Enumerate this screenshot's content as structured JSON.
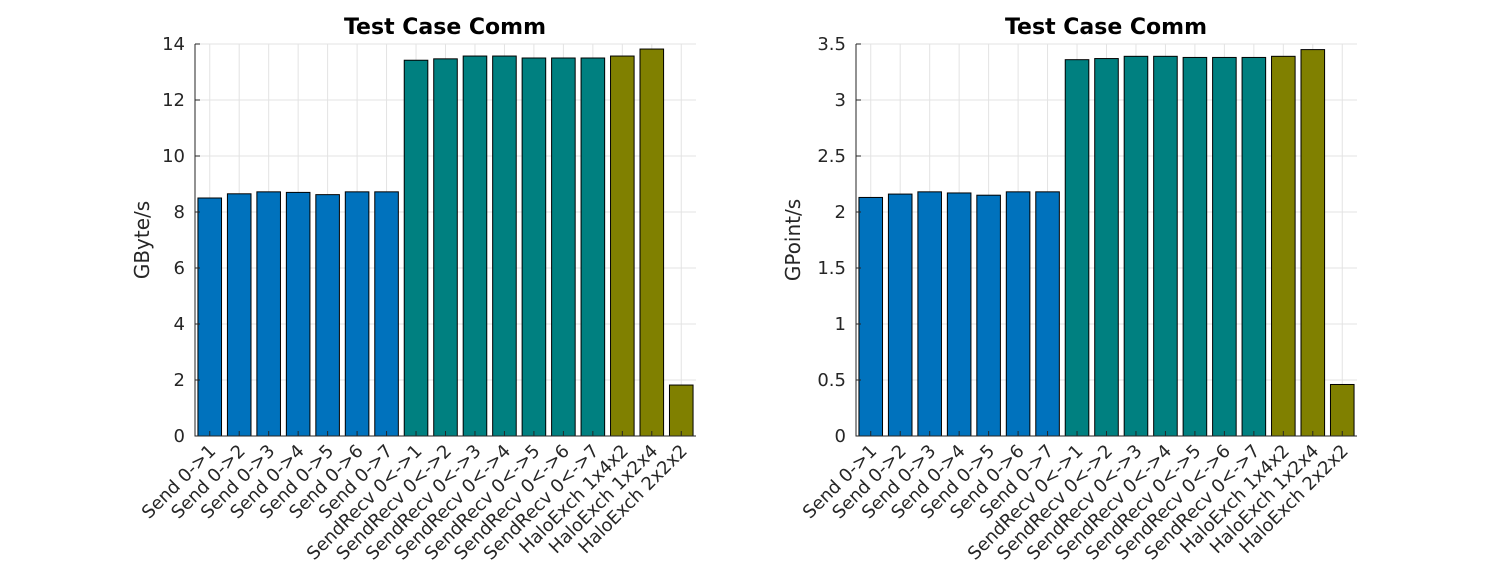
{
  "colors": {
    "send": "#0072bd",
    "sendrecv": "#008080",
    "haloexch": "#808000"
  },
  "chart_data": [
    {
      "type": "bar",
      "title": "Test Case Comm",
      "xlabel": "",
      "ylabel": "GByte/s",
      "ylim": [
        0,
        14
      ],
      "yticks": [
        0,
        2,
        4,
        6,
        8,
        10,
        12,
        14
      ],
      "ytick_labels": [
        "0",
        "2",
        "4",
        "6",
        "8",
        "10",
        "12",
        "14"
      ],
      "grid": true,
      "categories": [
        "Send 0->1",
        "Send 0->2",
        "Send 0->3",
        "Send 0->4",
        "Send 0->5",
        "Send 0->6",
        "Send 0->7",
        "SendRecv 0<->1",
        "SendRecv 0<->2",
        "SendRecv 0<->3",
        "SendRecv 0<->4",
        "SendRecv 0<->5",
        "SendRecv 0<->6",
        "SendRecv 0<->7",
        "HaloExch 1x4x2",
        "HaloExch 1x2x4",
        "HaloExch 2x2x2"
      ],
      "groups": [
        "send",
        "send",
        "send",
        "send",
        "send",
        "send",
        "send",
        "sendrecv",
        "sendrecv",
        "sendrecv",
        "sendrecv",
        "sendrecv",
        "sendrecv",
        "sendrecv",
        "haloexch",
        "haloexch",
        "haloexch"
      ],
      "values": [
        8.5,
        8.65,
        8.72,
        8.7,
        8.62,
        8.72,
        8.72,
        13.42,
        13.47,
        13.57,
        13.57,
        13.5,
        13.5,
        13.5,
        13.57,
        13.82,
        1.82
      ]
    },
    {
      "type": "bar",
      "title": "Test Case Comm",
      "xlabel": "",
      "ylabel": "GPoint/s",
      "ylim": [
        0,
        3.5
      ],
      "yticks": [
        0,
        0.5,
        1,
        1.5,
        2,
        2.5,
        3,
        3.5
      ],
      "ytick_labels": [
        "0",
        "0.5",
        "1",
        "1.5",
        "2",
        "2.5",
        "3",
        "3.5"
      ],
      "grid": true,
      "categories": [
        "Send 0->1",
        "Send 0->2",
        "Send 0->3",
        "Send 0->4",
        "Send 0->5",
        "Send 0->6",
        "Send 0->7",
        "SendRecv 0<->1",
        "SendRecv 0<->2",
        "SendRecv 0<->3",
        "SendRecv 0<->4",
        "SendRecv 0<->5",
        "SendRecv 0<->6",
        "SendRecv 0<->7",
        "HaloExch 1x4x2",
        "HaloExch 1x2x4",
        "HaloExch 2x2x2"
      ],
      "groups": [
        "send",
        "send",
        "send",
        "send",
        "send",
        "send",
        "send",
        "sendrecv",
        "sendrecv",
        "sendrecv",
        "sendrecv",
        "sendrecv",
        "sendrecv",
        "sendrecv",
        "haloexch",
        "haloexch",
        "haloexch"
      ],
      "values": [
        2.13,
        2.16,
        2.18,
        2.17,
        2.15,
        2.18,
        2.18,
        3.36,
        3.37,
        3.39,
        3.39,
        3.38,
        3.38,
        3.38,
        3.39,
        3.45,
        0.46
      ]
    }
  ]
}
